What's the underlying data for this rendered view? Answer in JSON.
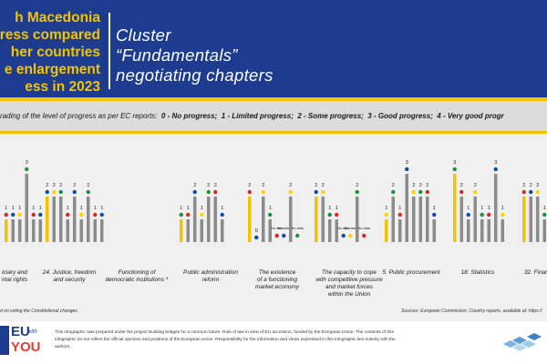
{
  "header": {
    "left_lines": [
      "h Macedonia",
      "ress compared",
      "her countries",
      "e enlargement",
      "ess in 2023"
    ],
    "right_lines": [
      "Cluster",
      "“Fundamentals”",
      "negotiating chapters"
    ]
  },
  "legend": {
    "prefix": "rading of the level of progress as per EC reports:",
    "items": [
      "0 - No progress;",
      "1 - Limited progress;",
      "2 - Some progress;",
      "3 - Good progress;",
      "4 - Very good progr"
    ]
  },
  "colors": {
    "header_bg": "#1d3c8f",
    "accent_yellow": "#f2c300",
    "bar_gray": "#8c8c8c",
    "mk_bar": "#f2c300",
    "flag_red": "#d52b1e",
    "flag_blue": "#0c4da2",
    "flag_yellow": "#ffd500",
    "flag_green": "#1e8f3a"
  },
  "chart_data": {
    "type": "bar",
    "ylim": [
      0,
      4
    ],
    "groups": [
      {
        "label_lines": [
          "iciary and",
          "ntal rights"
        ],
        "values": [
          1,
          1,
          1,
          3,
          1,
          1
        ],
        "bar_labels": [
          "1",
          "1",
          "1",
          "3",
          "1",
          "1"
        ]
      },
      {
        "label_lines": [
          "24. Justice, freedom",
          "and security"
        ],
        "values": [
          2,
          2,
          2,
          1,
          2,
          1,
          2,
          1,
          1
        ],
        "bar_labels": [
          "2",
          "2",
          "2",
          "1",
          "2",
          "1",
          "2",
          "1",
          "1"
        ]
      },
      {
        "label_lines": [
          "Functioning of",
          "democratic institutions *"
        ],
        "values": [],
        "bar_labels": []
      },
      {
        "label_lines": [
          "Public administration",
          "reform"
        ],
        "values": [
          1,
          1,
          2,
          1,
          2,
          2,
          1
        ],
        "bar_labels": [
          "1",
          "1",
          "2",
          "1",
          "2",
          "2",
          "1"
        ]
      },
      {
        "label_lines": [
          "The existence",
          "of a functioning",
          "market economy"
        ],
        "values": [
          2,
          0,
          2,
          1,
          0,
          0,
          2,
          0
        ],
        "bar_labels": [
          "2",
          "0",
          "2",
          "1",
          "No data",
          "No data",
          "2",
          "No data"
        ]
      },
      {
        "label_lines": [
          "The capacity to cope",
          "with competitive pressure",
          "and market forces",
          "within the Union"
        ],
        "values": [
          2,
          2,
          1,
          1,
          0,
          0,
          2,
          0
        ],
        "bar_labels": [
          "2",
          "2",
          "1",
          "1",
          "No data",
          "No data",
          "2",
          "No data"
        ]
      },
      {
        "label_lines": [
          "5. Public procurement"
        ],
        "values": [
          1,
          2,
          1,
          3,
          2,
          2,
          2,
          1
        ],
        "bar_labels": [
          "1",
          "2",
          "1",
          "3",
          "2",
          "2",
          "2",
          "1"
        ]
      },
      {
        "label_lines": [
          "18. Statistics"
        ],
        "values": [
          3,
          2,
          1,
          2,
          1,
          1,
          3,
          1
        ],
        "bar_labels": [
          "3",
          "2",
          "1",
          "2",
          "1",
          "1",
          "3",
          "1"
        ]
      },
      {
        "label_lines": [
          "32. Financ"
        ],
        "values": [
          2,
          2,
          2,
          1
        ],
        "bar_labels": [
          "2",
          "2",
          "2",
          "1"
        ]
      }
    ]
  },
  "footnote": "d on voting the Constitutional changes",
  "sources": "Sources: European Commission, Country reports, available at: https://",
  "logo": {
    "line1": "EU",
    "line2": "with",
    "line3": "YOU"
  },
  "footer_text": "This infographic was prepared under the project Building bridges for a common future: Rule of law in view of EU accession, funded by the European Union. The contents of this infographic do not reflect the official opinions and positions of the European Union. Responsibility for the information and views expressed in this infographic lies entirely with the authors."
}
